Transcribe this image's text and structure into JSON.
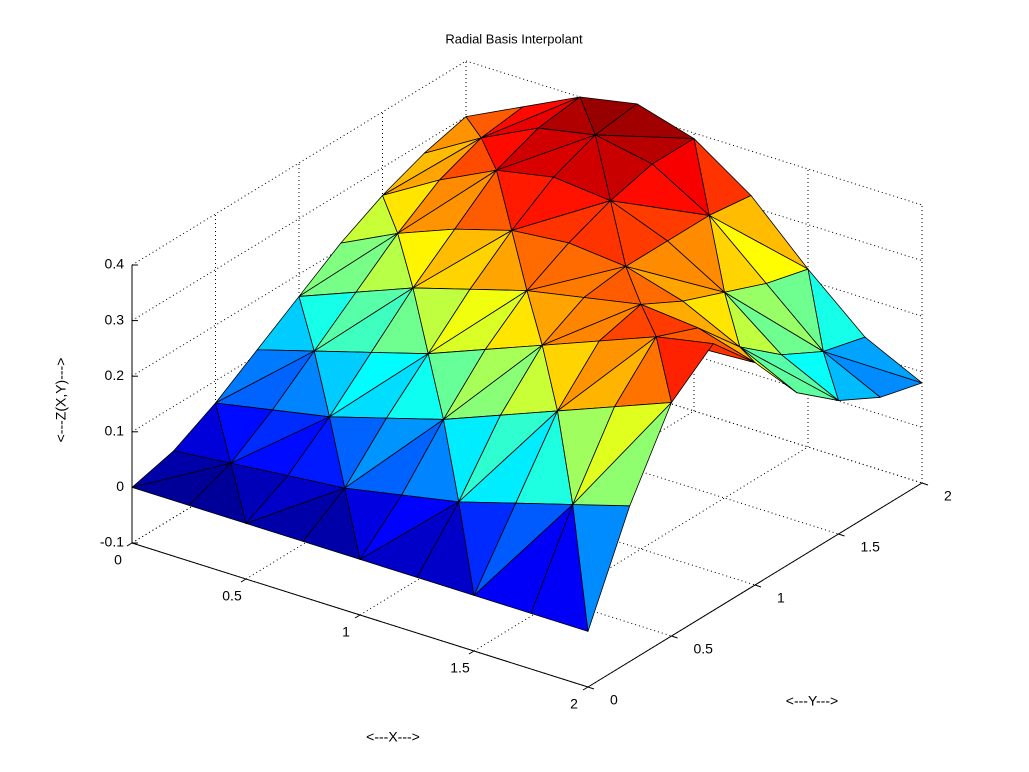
{
  "chart_data": {
    "type": "surface",
    "title": "Radial Basis Interpolant",
    "xlabel": "<---X--->",
    "ylabel": "<---Y--->",
    "zlabel": "<---Z(X,Y)--->",
    "x": [
      0,
      0.25,
      0.5,
      0.75,
      1,
      1.25,
      1.5,
      1.75,
      2
    ],
    "y": [
      0,
      0.25,
      0.5,
      0.75,
      1,
      1.25,
      1.5,
      1.75,
      2
    ],
    "z": [
      [
        0.0,
        0.02,
        0.06,
        0.11,
        0.16,
        0.21,
        0.25,
        0.28,
        0.3
      ],
      [
        0.0,
        0.03,
        0.08,
        0.14,
        0.2,
        0.26,
        0.31,
        0.34,
        0.35
      ],
      [
        0.0,
        0.04,
        0.1,
        0.17,
        0.24,
        0.3,
        0.36,
        0.39,
        0.4
      ],
      [
        0.0,
        0.05,
        0.13,
        0.2,
        0.27,
        0.33,
        0.38,
        0.41,
        0.42
      ],
      [
        0.0,
        0.07,
        0.16,
        0.24,
        0.3,
        0.34,
        0.37,
        0.39,
        0.39
      ],
      [
        0.0,
        0.09,
        0.2,
        0.28,
        0.32,
        0.33,
        0.33,
        0.33,
        0.32
      ],
      [
        0.0,
        0.12,
        0.24,
        0.32,
        0.34,
        0.3,
        0.27,
        0.24,
        0.22
      ],
      [
        0.0,
        0.15,
        0.28,
        0.36,
        0.33,
        0.25,
        0.19,
        0.15,
        0.13
      ],
      [
        0.0,
        0.18,
        0.32,
        0.38,
        0.3,
        0.2,
        0.14,
        0.1,
        0.08
      ]
    ],
    "xlim": [
      0,
      2
    ],
    "ylim": [
      0,
      2
    ],
    "zlim": [
      -0.1,
      0.4
    ],
    "xticks": [
      0,
      0.5,
      1,
      1.5,
      2
    ],
    "yticks": [
      0,
      0.5,
      1,
      1.5,
      2
    ],
    "zticks": [
      -0.1,
      0,
      0.1,
      0.2,
      0.3,
      0.4
    ],
    "grid": true,
    "colormap": "jet"
  }
}
